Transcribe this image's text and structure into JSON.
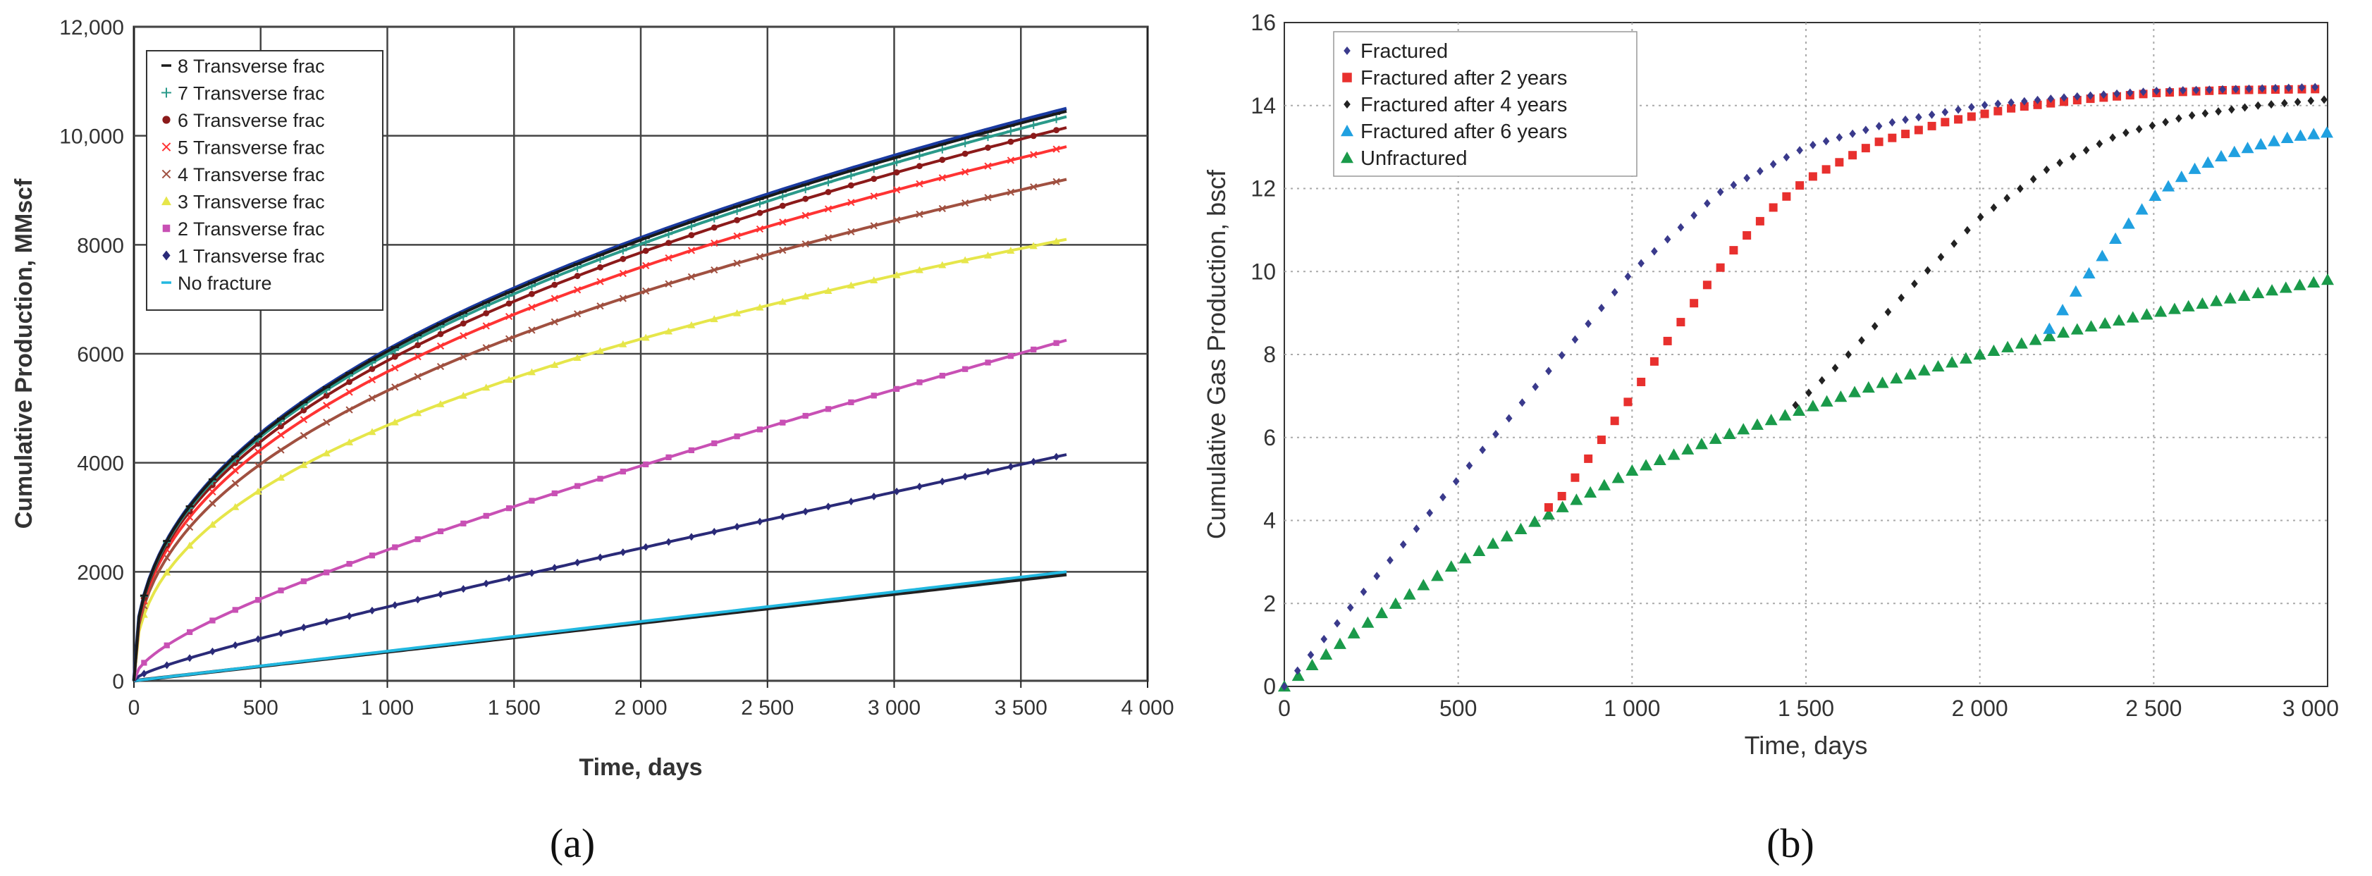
{
  "panel_labels": [
    "(a)",
    "(b)"
  ],
  "chart_data": [
    {
      "type": "line",
      "title": "",
      "xlabel": "Time, days",
      "ylabel": "Cumulative Production, MMscf",
      "xlim": [
        0,
        4000
      ],
      "ylim": [
        0,
        12000
      ],
      "xticks": [
        0,
        500,
        1000,
        1500,
        2000,
        2500,
        3000,
        3500,
        4000
      ],
      "xtick_labels": [
        "0",
        "500",
        "1 000",
        "1 500",
        "2 000",
        "2 500",
        "3 000",
        "3 500",
        "4 000"
      ],
      "yticks": [
        0,
        2000,
        4000,
        6000,
        8000,
        10000,
        12000
      ],
      "ytick_labels": [
        "0",
        "2000",
        "4000",
        "6000",
        "8000",
        "10,000",
        "12,000"
      ],
      "grid": true,
      "legend_position": "top-left",
      "series": [
        {
          "name": "8 Transverse frac",
          "color": "#1a1a1a",
          "marker": "dash",
          "final": 10450,
          "shape": "sqrt"
        },
        {
          "name": "7 Transverse frac",
          "color": "#2a9a8a",
          "marker": "plus",
          "final": 10350,
          "shape": "sqrt"
        },
        {
          "name": "6 Transverse frac",
          "color": "#8b1a1a",
          "marker": "circle",
          "final": 10150,
          "shape": "sqrt"
        },
        {
          "name": "5 Transverse frac",
          "color": "#ff3333",
          "marker": "x",
          "final": 9800,
          "shape": "sqrt"
        },
        {
          "name": "4 Transverse frac",
          "color": "#a05040",
          "marker": "x",
          "final": 9200,
          "shape": "sqrt"
        },
        {
          "name": "3 Transverse frac",
          "color": "#e6e64a",
          "marker": "triangle",
          "final": 8100,
          "shape": "sqrt"
        },
        {
          "name": "2 Transverse frac",
          "color": "#c850b4",
          "marker": "square",
          "final": 6250,
          "shape": "mix"
        },
        {
          "name": "1 Transverse frac",
          "color": "#2a2a78",
          "marker": "diamond",
          "final": 4150,
          "shape": "mix2"
        },
        {
          "name": "No fracture",
          "color": "#22b8e0",
          "marker": "dash",
          "final": 2000,
          "shape": "linear"
        }
      ],
      "extra_series": [
        {
          "name": "",
          "color": "#222222",
          "final": 1950,
          "shape": "linear"
        },
        {
          "name": "",
          "color": "#1a3aa0",
          "final": 10500,
          "shape": "sqrt"
        }
      ],
      "t_end": 3680
    },
    {
      "type": "scatter",
      "title": "",
      "xlabel": "Time, days",
      "ylabel": "Cumulative Gas Production, bscf",
      "xlim": [
        0,
        3000
      ],
      "ylim": [
        0,
        16
      ],
      "xticks": [
        0,
        500,
        1000,
        1500,
        2000,
        2500,
        3000
      ],
      "xtick_labels": [
        "0",
        "500",
        "1 000",
        "1 500",
        "2 000",
        "2 500",
        "3 000"
      ],
      "yticks": [
        0,
        2,
        4,
        6,
        8,
        10,
        12,
        14,
        16
      ],
      "ytick_labels": [
        "0",
        "2",
        "4",
        "6",
        "8",
        "10",
        "12",
        "14",
        "16"
      ],
      "grid": true,
      "legend_position": "top-left",
      "series": [
        {
          "name": "Fractured",
          "color": "#3a3a8c",
          "marker": "diamond",
          "x": [
            0,
            250,
            500,
            750,
            1000,
            1250,
            1500,
            1750,
            2000,
            2250,
            2500,
            2750,
            3000
          ],
          "y": [
            0,
            2.5,
            5.0,
            7.5,
            10.0,
            11.9,
            13.0,
            13.6,
            14.0,
            14.2,
            14.35,
            14.4,
            14.45
          ]
        },
        {
          "name": "Fractured after 2 years",
          "color": "#e8302e",
          "marker": "square",
          "x": [
            0,
            250,
            500,
            730,
            800,
            900,
            1000,
            1100,
            1200,
            1300,
            1400,
            1500,
            1700,
            1900,
            2100,
            2300,
            2500,
            2700,
            3000
          ],
          "y": [
            0,
            1.6,
            3.0,
            4.1,
            4.6,
            5.8,
            7.0,
            8.3,
            9.5,
            10.6,
            11.5,
            12.2,
            13.1,
            13.6,
            13.95,
            14.15,
            14.3,
            14.37,
            14.4
          ]
        },
        {
          "name": "Fractured after 4 years",
          "color": "#222222",
          "marker": "diamond",
          "x": [
            0,
            500,
            1000,
            1460,
            1600,
            1800,
            2000,
            2200,
            2400,
            2600,
            2800,
            3000
          ],
          "y": [
            0,
            3.0,
            5.2,
            6.7,
            7.8,
            9.6,
            11.3,
            12.5,
            13.3,
            13.75,
            14.0,
            14.15
          ]
        },
        {
          "name": "Fractured after 6 years",
          "color": "#20a0e0",
          "marker": "triangle",
          "x": [
            0,
            1000,
            2000,
            2190,
            2300,
            2400,
            2500,
            2600,
            2700,
            2800,
            2900,
            3000
          ],
          "y": [
            0,
            5.2,
            8.0,
            8.5,
            9.8,
            10.9,
            11.8,
            12.4,
            12.8,
            13.05,
            13.25,
            13.35
          ]
        },
        {
          "name": "Unfractured",
          "color": "#1a9a4a",
          "marker": "triangle",
          "x": [
            0,
            250,
            500,
            750,
            1000,
            1250,
            1500,
            1750,
            2000,
            2250,
            2500,
            2750,
            3000
          ],
          "y": [
            0,
            1.6,
            3.0,
            4.1,
            5.2,
            6.0,
            6.7,
            7.4,
            8.0,
            8.55,
            9.0,
            9.4,
            9.8
          ]
        }
      ]
    }
  ]
}
